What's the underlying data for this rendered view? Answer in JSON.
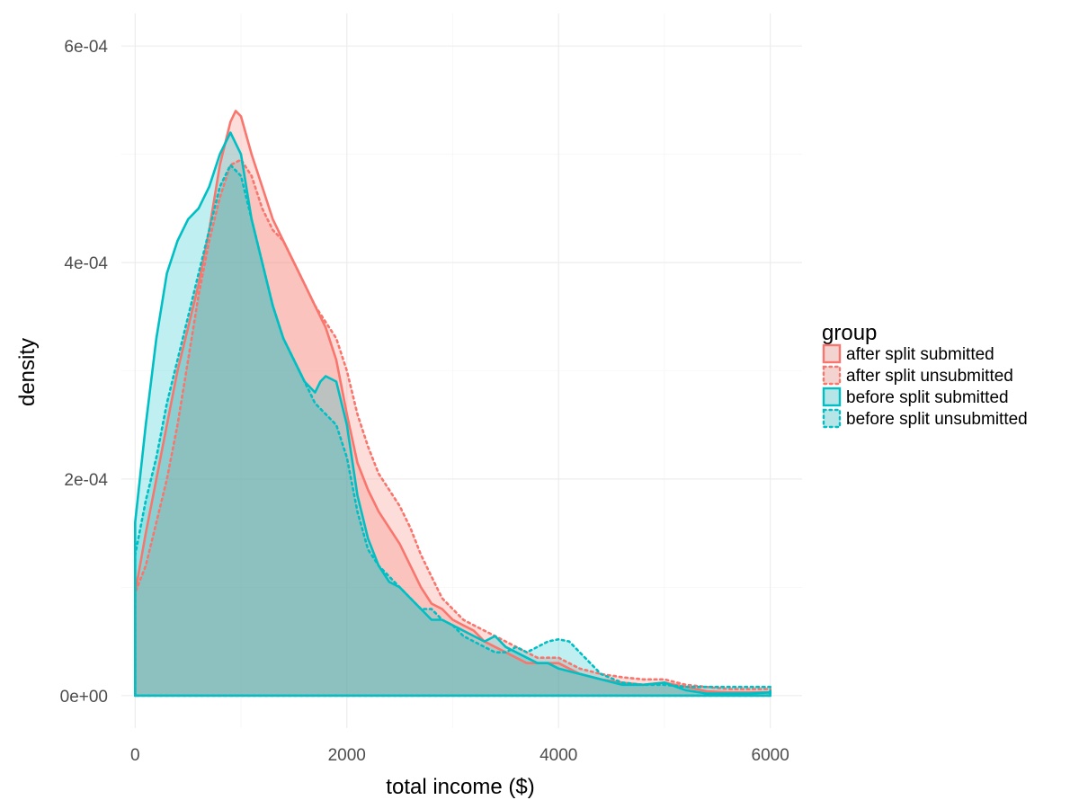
{
  "chart_data": {
    "type": "area",
    "chart_kind": "density",
    "xlabel": "total income ($)",
    "ylabel": "density",
    "xlim": [
      -130,
      6300
    ],
    "ylim": [
      -3e-05,
      0.00063
    ],
    "x_ticks": [
      0,
      2000,
      4000,
      6000
    ],
    "x_tick_labels": [
      "0",
      "2000",
      "4000",
      "6000"
    ],
    "y_ticks": [
      0,
      0.0002,
      0.0004,
      0.0006
    ],
    "y_tick_labels": [
      "0e+00",
      "2e-04",
      "4e-04",
      "6e-04"
    ],
    "x_minor": [
      1000,
      3000,
      5000
    ],
    "y_minor": [
      0.0001,
      0.0003,
      0.0005
    ],
    "grid": true,
    "legend": {
      "title": "group",
      "position": "right"
    },
    "series": [
      {
        "name": "after split submitted",
        "color": "#F8766D",
        "linetype": "solid",
        "x": [
          0,
          100,
          200,
          300,
          400,
          500,
          600,
          700,
          800,
          900,
          950,
          1000,
          1100,
          1200,
          1300,
          1400,
          1500,
          1600,
          1700,
          1800,
          1900,
          2000,
          2100,
          2200,
          2300,
          2400,
          2500,
          2600,
          2700,
          2800,
          2900,
          3000,
          3100,
          3200,
          3300,
          3400,
          3500,
          3600,
          3700,
          3800,
          3900,
          4000,
          4200,
          4400,
          4600,
          4800,
          5000,
          5200,
          5400,
          5600,
          5800,
          6000
        ],
        "y": [
          9.5e-05,
          0.00015,
          0.0002,
          0.00025,
          0.0003,
          0.00034,
          0.00038,
          0.00043,
          0.00049,
          0.00053,
          0.00054,
          0.000535,
          0.0005,
          0.00047,
          0.00044,
          0.00042,
          0.0004,
          0.00038,
          0.00036,
          0.00034,
          0.00031,
          0.00026,
          0.000215,
          0.00019,
          0.00017,
          0.000155,
          0.00014,
          0.00012,
          0.0001,
          8.5e-05,
          8e-05,
          7e-05,
          6.5e-05,
          6e-05,
          5e-05,
          4.5e-05,
          4e-05,
          3.5e-05,
          3e-05,
          3e-05,
          3e-05,
          3e-05,
          2e-05,
          1.5e-05,
          1.2e-05,
          1e-05,
          1.2e-05,
          8e-06,
          4e-06,
          3e-06,
          3e-06,
          3e-06
        ]
      },
      {
        "name": "after split unsubmitted",
        "color": "#F8766D",
        "linetype": "dotted",
        "x": [
          0,
          100,
          200,
          300,
          400,
          500,
          600,
          700,
          800,
          900,
          1000,
          1100,
          1200,
          1300,
          1400,
          1500,
          1600,
          1700,
          1800,
          1900,
          2000,
          2100,
          2200,
          2300,
          2400,
          2500,
          2600,
          2700,
          2800,
          2900,
          3000,
          3100,
          3200,
          3300,
          3400,
          3500,
          3600,
          3700,
          3800,
          3900,
          4000,
          4200,
          4400,
          4600,
          4800,
          5000,
          5200,
          5400,
          5600,
          5800,
          6000
        ],
        "y": [
          9.5e-05,
          0.00012,
          0.00016,
          0.0002,
          0.00025,
          0.00031,
          0.00037,
          0.00042,
          0.00046,
          0.00049,
          0.000495,
          0.00048,
          0.00045,
          0.00043,
          0.00042,
          0.0004,
          0.00038,
          0.00036,
          0.000345,
          0.00033,
          0.0003,
          0.00026,
          0.00023,
          0.000205,
          0.00019,
          0.000175,
          0.000155,
          0.00013,
          0.00011,
          9e-05,
          8e-05,
          7e-05,
          6.5e-05,
          6e-05,
          5.5e-05,
          5e-05,
          4.5e-05,
          4e-05,
          3.5e-05,
          3.5e-05,
          3.5e-05,
          2.5e-05,
          2e-05,
          1.7e-05,
          1.5e-05,
          1.5e-05,
          1e-05,
          8e-06,
          6e-06,
          6e-06,
          6e-06
        ]
      },
      {
        "name": "before split submitted",
        "color": "#00BFC4",
        "linetype": "solid",
        "x": [
          0,
          100,
          200,
          300,
          400,
          500,
          600,
          700,
          800,
          900,
          1000,
          1100,
          1200,
          1300,
          1400,
          1500,
          1600,
          1700,
          1750,
          1800,
          1900,
          2000,
          2100,
          2200,
          2300,
          2400,
          2500,
          2600,
          2700,
          2800,
          2900,
          3000,
          3100,
          3200,
          3300,
          3400,
          3500,
          3600,
          3700,
          3800,
          3900,
          4000,
          4200,
          4400,
          4600,
          4800,
          5000,
          5200,
          5400,
          5600,
          5800,
          6000
        ],
        "y": [
          0.00016,
          0.00025,
          0.00033,
          0.00039,
          0.00042,
          0.00044,
          0.00045,
          0.00047,
          0.0005,
          0.00052,
          0.0005,
          0.00044,
          0.0004,
          0.00036,
          0.00033,
          0.00031,
          0.00029,
          0.00028,
          0.00029,
          0.000295,
          0.00029,
          0.00025,
          0.000185,
          0.000145,
          0.00012,
          0.000105,
          0.0001,
          9e-05,
          8e-05,
          7e-05,
          7e-05,
          6.5e-05,
          6e-05,
          5.5e-05,
          5e-05,
          5.5e-05,
          4.5e-05,
          4e-05,
          3.5e-05,
          3e-05,
          3e-05,
          2.5e-05,
          2e-05,
          1.5e-05,
          1e-05,
          1e-05,
          1.2e-05,
          5e-06,
          2e-06,
          2e-06,
          2e-06,
          3e-06
        ]
      },
      {
        "name": "before split unsubmitted",
        "color": "#00BFC4",
        "linetype": "dotted",
        "x": [
          0,
          100,
          200,
          300,
          400,
          500,
          600,
          700,
          800,
          900,
          1000,
          1100,
          1200,
          1300,
          1400,
          1500,
          1600,
          1700,
          1800,
          1900,
          2000,
          2100,
          2200,
          2300,
          2400,
          2500,
          2600,
          2700,
          2800,
          2900,
          3000,
          3100,
          3200,
          3300,
          3400,
          3500,
          3600,
          3700,
          3800,
          3900,
          4000,
          4100,
          4200,
          4400,
          4600,
          4800,
          5000,
          5200,
          5400,
          5600,
          5800,
          6000
        ],
        "y": [
          0.00013,
          0.00018,
          0.00022,
          0.00027,
          0.00031,
          0.00035,
          0.00039,
          0.00043,
          0.00047,
          0.00049,
          0.00048,
          0.00044,
          0.0004,
          0.00036,
          0.00033,
          0.00031,
          0.00029,
          0.00027,
          0.00026,
          0.00025,
          0.00022,
          0.00017,
          0.000135,
          0.00012,
          0.00011,
          0.0001,
          9e-05,
          8e-05,
          8e-05,
          7e-05,
          6.5e-05,
          5.5e-05,
          5e-05,
          4.5e-05,
          4e-05,
          4e-05,
          4.5e-05,
          4e-05,
          4.5e-05,
          5e-05,
          5.2e-05,
          5e-05,
          4e-05,
          2e-05,
          1.2e-05,
          1e-05,
          1e-05,
          8e-06,
          8e-06,
          8e-06,
          8e-06,
          8e-06
        ]
      }
    ]
  }
}
